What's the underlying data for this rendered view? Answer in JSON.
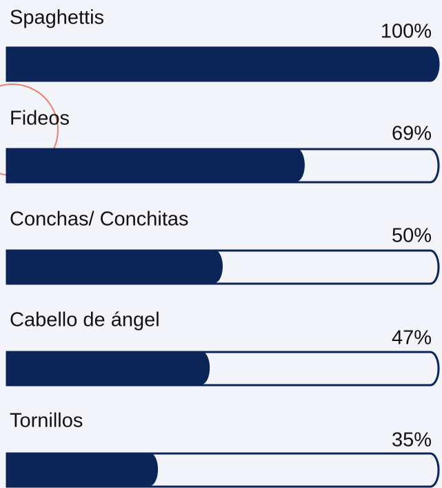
{
  "chart_data": {
    "type": "bar",
    "categories": [
      "Spaghettis",
      "Fideos",
      "Conchas/ Conchitas",
      "Cabello de ángel",
      "Tornillos"
    ],
    "values": [
      100,
      69,
      50,
      47,
      35
    ],
    "value_labels": [
      "100%",
      "69%",
      "50%",
      "47%",
      "35%"
    ],
    "xlim": [
      0,
      100
    ],
    "color": "#0b2559"
  }
}
